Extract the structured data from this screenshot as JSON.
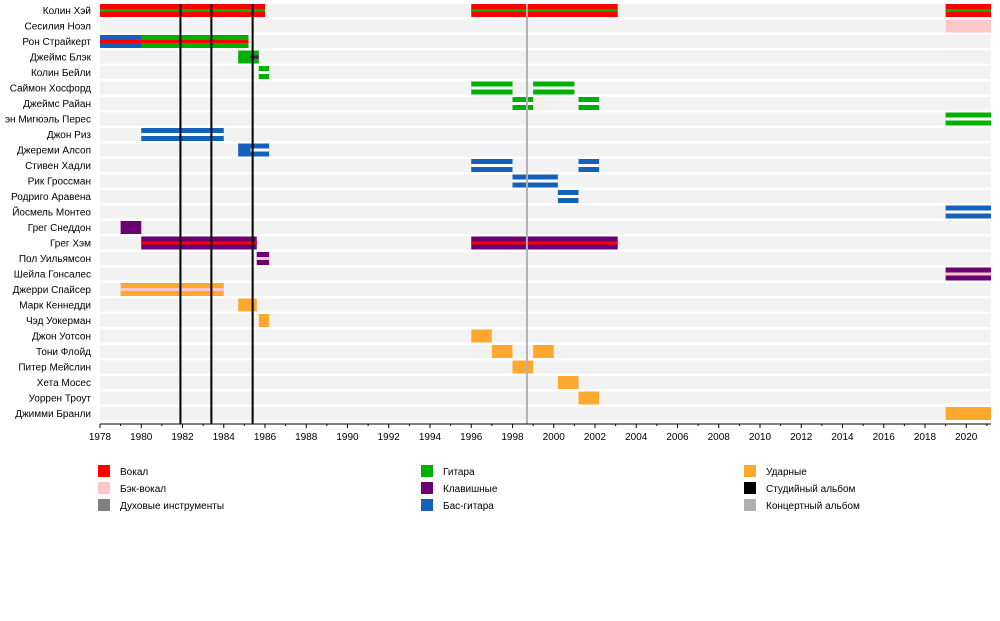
{
  "chart_data": {
    "type": "timeline",
    "x_range": [
      1978,
      2021.2
    ],
    "x_ticks": [
      1978,
      1980,
      1982,
      1984,
      1986,
      1988,
      1990,
      1992,
      1994,
      1996,
      1998,
      2000,
      2002,
      2004,
      2006,
      2008,
      2010,
      2012,
      2014,
      2016,
      2018,
      2020
    ],
    "colors": {
      "vocal": "#ff0000",
      "backing": "#ffc8c8",
      "wind": "#808080",
      "guitar": "#00b000",
      "keys": "#6c0070",
      "bass": "#1560bd",
      "drums": "#ffa830",
      "studio": "#000000",
      "live": "#b0b0b0"
    },
    "members": [
      "Колин Хэй",
      "Сесилия Ноэл",
      "Рон Страйкерт",
      "Джеймс Блэк",
      "Колин Бейли",
      "Саймон Хосфорд",
      "Джеймс Райан",
      "эн Мигюэль Перес",
      "Джон Риз",
      "Джереми Алсоп",
      "Стивен Хадли",
      "Рик Гроссман",
      "Родриго Аравена",
      "Йосмель Монтео",
      "Грег Снеддон",
      "Грег Хэм",
      "Пол Уильямсон",
      "Шейла Гонсалес",
      "Джерри Спайсер",
      "Марк Кеннедди",
      "Чэд Уокерман",
      "Джон Уотсон",
      "Тони Флойд",
      "Питер Мейслин",
      "Хета Мосес",
      "Уоррен Троут",
      "Джимми Бранли"
    ],
    "bars": [
      {
        "member": 0,
        "start": 1978,
        "end": 1986,
        "fill": "vocal",
        "stripe": "guitar"
      },
      {
        "member": 0,
        "start": 1996,
        "end": 2003.1,
        "fill": "vocal",
        "stripe": "guitar"
      },
      {
        "member": 0,
        "start": 2019,
        "end": 2021.2,
        "fill": "vocal",
        "stripe": "guitar"
      },
      {
        "member": 1,
        "start": 2019,
        "end": 2021.2,
        "fill": "backing"
      },
      {
        "member": 2,
        "start": 1978,
        "end": 1985.2,
        "fill": "guitar",
        "stripe": "vocal"
      },
      {
        "member": 2,
        "start": 1978,
        "end": 1980,
        "fill": "bass",
        "stripe": "vocal"
      },
      {
        "member": 3,
        "start": 1984.7,
        "end": 1985.3,
        "fill": "guitar"
      },
      {
        "member": 3,
        "start": 1985.3,
        "end": 1985.7,
        "fill": "guitar",
        "stripe": "keys"
      },
      {
        "member": 4,
        "start": 1985.7,
        "end": 1986.2,
        "fill": "guitar",
        "stripe": "#ffffff"
      },
      {
        "member": 5,
        "start": 1996,
        "end": 1998,
        "fill": "guitar",
        "stripe": "#ffffff"
      },
      {
        "member": 5,
        "start": 1999,
        "end": 2001,
        "fill": "guitar",
        "stripe": "#ffffff"
      },
      {
        "member": 6,
        "start": 1998,
        "end": 1999,
        "fill": "guitar",
        "stripe": "#ffffff"
      },
      {
        "member": 6,
        "start": 2001.2,
        "end": 2002.2,
        "fill": "guitar",
        "stripe": "#ffffff"
      },
      {
        "member": 7,
        "start": 2019,
        "end": 2021.2,
        "fill": "guitar",
        "stripe": "#ffffff"
      },
      {
        "member": 8,
        "start": 1980,
        "end": 1984,
        "fill": "bass",
        "stripe": "#ffffff"
      },
      {
        "member": 9,
        "start": 1984.7,
        "end": 1985.3,
        "fill": "bass"
      },
      {
        "member": 9,
        "start": 1985.3,
        "end": 1986.2,
        "fill": "bass",
        "stripe": "#ffffff"
      },
      {
        "member": 10,
        "start": 1996,
        "end": 1998,
        "fill": "bass",
        "stripe": "#ffffff"
      },
      {
        "member": 10,
        "start": 2001.2,
        "end": 2002.2,
        "fill": "bass",
        "stripe": "#ffffff"
      },
      {
        "member": 11,
        "start": 1998,
        "end": 2000.2,
        "fill": "bass",
        "stripe": "#ffffff"
      },
      {
        "member": 12,
        "start": 2000.2,
        "end": 2001.2,
        "fill": "bass",
        "stripe": "#ffffff"
      },
      {
        "member": 13,
        "start": 2019,
        "end": 2021.2,
        "fill": "bass",
        "stripe": "#ffffff"
      },
      {
        "member": 14,
        "start": 1979,
        "end": 1980,
        "fill": "keys"
      },
      {
        "member": 15,
        "start": 1980,
        "end": 1985.6,
        "fill": "keys",
        "stripe": "vocal"
      },
      {
        "member": 15,
        "start": 1996,
        "end": 2003.1,
        "fill": "keys",
        "stripe": "vocal"
      },
      {
        "member": 16,
        "start": 1985.6,
        "end": 1986.2,
        "fill": "keys",
        "stripe": "backing"
      },
      {
        "member": 17,
        "start": 2019,
        "end": 2021.2,
        "fill": "keys",
        "stripe": "backing"
      },
      {
        "member": 18,
        "start": 1979,
        "end": 1984,
        "fill": "drums",
        "stripe": "backing"
      },
      {
        "member": 19,
        "start": 1984.7,
        "end": 1985.6,
        "fill": "drums"
      },
      {
        "member": 20,
        "start": 1985.7,
        "end": 1986.2,
        "fill": "drums"
      },
      {
        "member": 21,
        "start": 1996,
        "end": 1997,
        "fill": "drums"
      },
      {
        "member": 22,
        "start": 1997,
        "end": 1998,
        "fill": "drums"
      },
      {
        "member": 22,
        "start": 1999,
        "end": 2000,
        "fill": "drums"
      },
      {
        "member": 23,
        "start": 1998,
        "end": 1999,
        "fill": "drums"
      },
      {
        "member": 24,
        "start": 2000.2,
        "end": 2001.2,
        "fill": "drums"
      },
      {
        "member": 25,
        "start": 2001.2,
        "end": 2002.2,
        "fill": "drums"
      },
      {
        "member": 26,
        "start": 2019,
        "end": 2021.2,
        "fill": "drums"
      }
    ],
    "studio_albums": [
      1981.9,
      1983.4,
      1985.4
    ],
    "live_albums": [
      1998.7
    ],
    "legend": [
      {
        "label": "Вокал",
        "color": "vocal",
        "column": 0,
        "row": 0
      },
      {
        "label": "Бэк-вокал",
        "color": "backing",
        "column": 0,
        "row": 1
      },
      {
        "label": "Духовые инструменты",
        "color": "wind",
        "column": 0,
        "row": 2
      },
      {
        "label": "Гитара",
        "color": "guitar",
        "column": 1,
        "row": 0
      },
      {
        "label": "Клавишные",
        "color": "keys",
        "column": 1,
        "row": 1
      },
      {
        "label": "Бас-гитара",
        "color": "bass",
        "column": 1,
        "row": 2
      },
      {
        "label": "Ударные",
        "color": "drums",
        "column": 2,
        "row": 0
      },
      {
        "label": "Студийный альбом",
        "color": "studio",
        "column": 2,
        "row": 1
      },
      {
        "label": "Концертный альбом",
        "color": "live",
        "column": 2,
        "row": 2
      }
    ]
  }
}
